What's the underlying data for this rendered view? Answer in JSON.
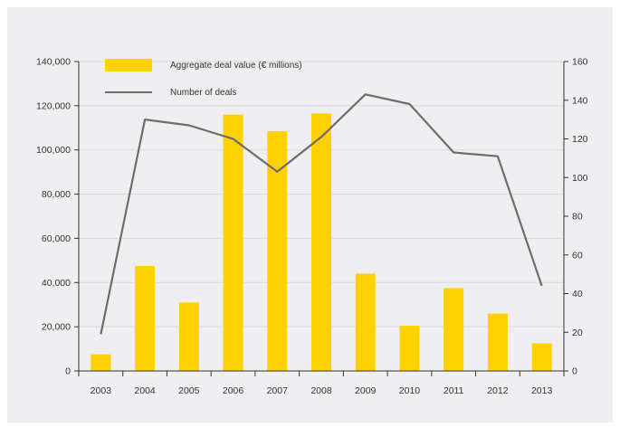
{
  "chart_data": {
    "type": "bar+line",
    "categories": [
      "2003",
      "2004",
      "2005",
      "2006",
      "2007",
      "2008",
      "2009",
      "2010",
      "2011",
      "2012",
      "2013"
    ],
    "series": [
      {
        "name": "Aggregate deal value (€ millions)",
        "type": "bar",
        "axis": "left",
        "color": "#ffd100",
        "values": [
          7500,
          47500,
          31000,
          116000,
          108500,
          116500,
          44000,
          20500,
          37500,
          26000,
          12500
        ]
      },
      {
        "name": "Number of deals",
        "type": "line",
        "axis": "right",
        "color": "#6d6d6d",
        "values": [
          19,
          130,
          127,
          120,
          103,
          121,
          143,
          138,
          113,
          111,
          44
        ]
      }
    ],
    "y_left": {
      "min": 0,
      "max": 140000,
      "ticks": [
        "0",
        "20,000",
        "40,000",
        "60,000",
        "80,000",
        "100,000",
        "120,000",
        "140,000"
      ]
    },
    "y_right": {
      "min": 0,
      "max": 160,
      "ticks": [
        "0",
        "20",
        "40",
        "60",
        "80",
        "100",
        "120",
        "140",
        "160"
      ]
    },
    "grid": "horizontal",
    "legend_position": "top-left",
    "background": "#efeff1"
  }
}
